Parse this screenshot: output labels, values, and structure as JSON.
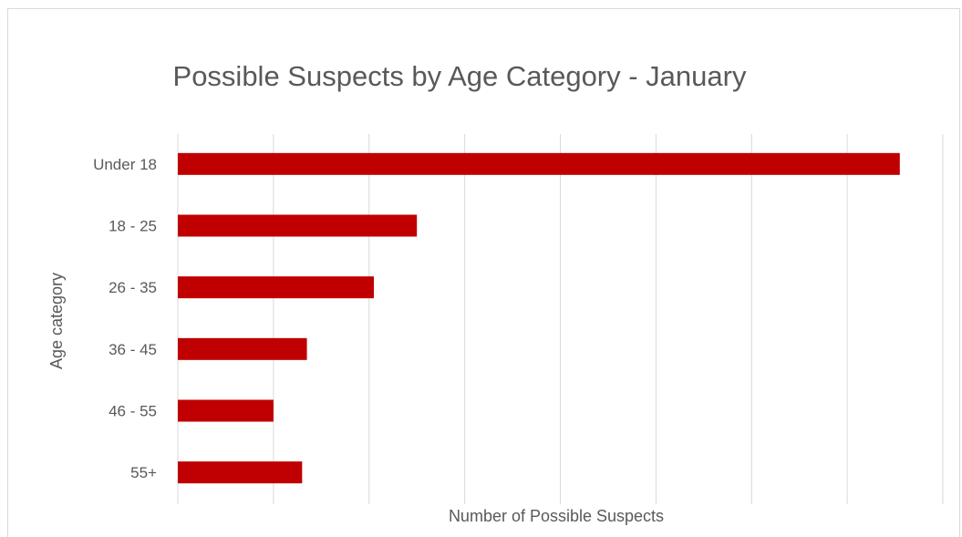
{
  "chart_data": {
    "type": "bar",
    "orientation": "horizontal",
    "title": "Possible Suspects by Age Category - January",
    "xlabel": "Number of Possible Suspects",
    "ylabel": "Age category",
    "categories": [
      "Under 18",
      "18 - 25",
      "26 - 35",
      "36 - 45",
      "46 - 55",
      "55+"
    ],
    "values": [
      7.55,
      2.5,
      2.05,
      1.35,
      1.0,
      1.3
    ],
    "xlim": [
      0,
      8
    ],
    "x_tick_labels_shown": false,
    "grid": "vertical",
    "legend": "none",
    "bar_color": "#c00000"
  }
}
